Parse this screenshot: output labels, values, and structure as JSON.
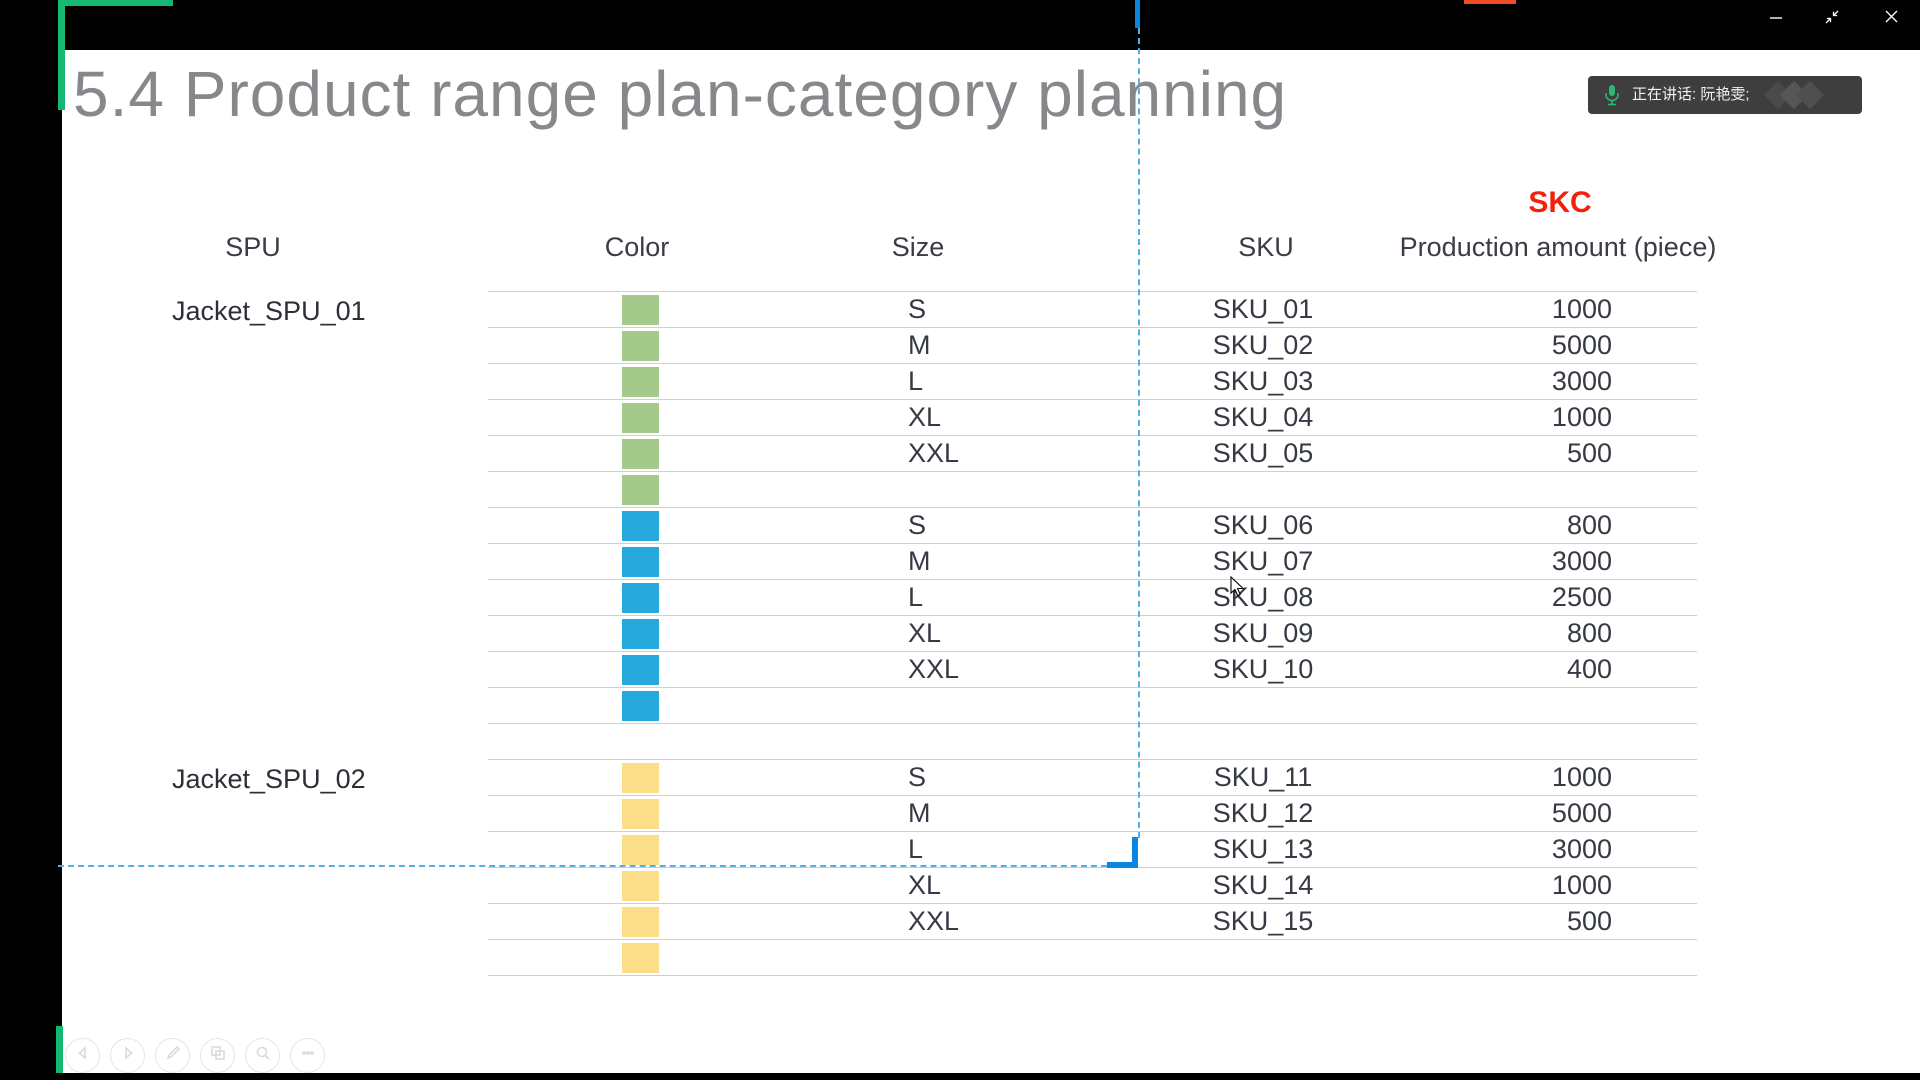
{
  "window": {
    "buttons": {
      "minimize": "minimize",
      "restore": "restore",
      "close": "close"
    },
    "tab_accent_color": "#ee4c24"
  },
  "meeting": {
    "speaking_label": "正在讲话: 阮艳雯;"
  },
  "slide": {
    "title": "5.4 Product range plan-category planning",
    "skc_label": "SKC",
    "headers": {
      "spu": "SPU",
      "color": "Color",
      "size": "Size",
      "sku": "SKU",
      "amount": "Production amount (piece)"
    },
    "groups": [
      {
        "spu": "Jacket_SPU_01",
        "swatch": "#a5c88b",
        "extra_swatch_row": true,
        "spacer_after": false,
        "rows": [
          {
            "size": "S",
            "sku": "SKU_01",
            "amount": "1000"
          },
          {
            "size": "M",
            "sku": "SKU_02",
            "amount": "5000"
          },
          {
            "size": "L",
            "sku": "SKU_03",
            "amount": "3000"
          },
          {
            "size": "XL",
            "sku": "SKU_04",
            "amount": "1000"
          },
          {
            "size": "XXL",
            "sku": "SKU_05",
            "amount": "500"
          }
        ]
      },
      {
        "spu": "",
        "swatch": "#27a8da",
        "extra_swatch_row": true,
        "spacer_after": true,
        "rows": [
          {
            "size": "S",
            "sku": "SKU_06",
            "amount": "800"
          },
          {
            "size": "M",
            "sku": "SKU_07",
            "amount": "3000"
          },
          {
            "size": "L",
            "sku": "SKU_08",
            "amount": "2500"
          },
          {
            "size": "XL",
            "sku": "SKU_09",
            "amount": "800"
          },
          {
            "size": "XXL",
            "sku": "SKU_10",
            "amount": "400"
          }
        ]
      },
      {
        "spu": "Jacket_SPU_02",
        "swatch": "#fbdd8a",
        "extra_swatch_row": true,
        "spacer_after": false,
        "rows": [
          {
            "size": "S",
            "sku": "SKU_11",
            "amount": "1000"
          },
          {
            "size": "M",
            "sku": "SKU_12",
            "amount": "5000"
          },
          {
            "size": "L",
            "sku": "SKU_13",
            "amount": "3000"
          },
          {
            "size": "XL",
            "sku": "SKU_14",
            "amount": "1000"
          },
          {
            "size": "XXL",
            "sku": "SKU_15",
            "amount": "500"
          }
        ]
      }
    ]
  },
  "toolbar": {
    "items": [
      "previous-slide",
      "next-slide",
      "pen",
      "slide-panel",
      "zoom",
      "more"
    ]
  },
  "colors": {
    "marker_green": "#15b871",
    "dashed_blue": "#55ace6",
    "solid_blue": "#0a85e2",
    "skc_red": "#f2200d",
    "swatch_green": "#a5c88b",
    "swatch_blue": "#27a8da",
    "swatch_yellow": "#fbdd8a",
    "mic_green": "#2bb673"
  }
}
